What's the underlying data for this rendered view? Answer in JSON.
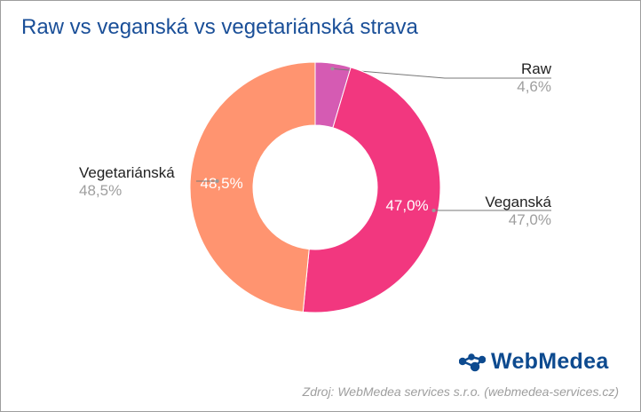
{
  "chart_data": {
    "type": "pie",
    "title": "Raw vs veganská vs vegetariánská strava",
    "donut": true,
    "slices": [
      {
        "label": "Raw",
        "value": 4.6,
        "display": "4,6%",
        "color": "#d55bb3",
        "inner_label": ""
      },
      {
        "label": "Veganská",
        "value": 47.0,
        "display": "47,0%",
        "color": "#f2377f",
        "inner_label": "47,0%"
      },
      {
        "label": "Vegetariánská",
        "value": 48.5,
        "display": "48,5%",
        "color": "#ff9470",
        "inner_label": "48,5%"
      }
    ]
  },
  "logo": {
    "text": "WebMedea",
    "color": "#0d4a8f"
  },
  "source": "Zdroj: WebMedea services s.r.o. (webmedea-services.cz)"
}
